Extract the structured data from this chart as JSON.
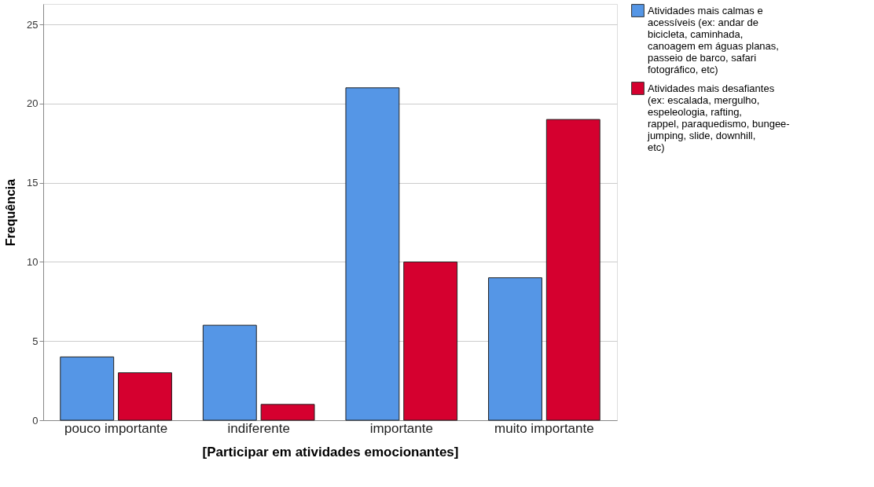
{
  "chart_data": {
    "type": "bar",
    "xlabel": "[Participar em atividades emocionantes]",
    "ylabel": "Frequência",
    "categories": [
      "pouco importante",
      "indiferente",
      "importante",
      "muito importante"
    ],
    "series": [
      {
        "name": "Atividades mais calmas e acessíveis (ex: andar de bicicleta, caminhada, canoagem em águas planas, passeio de barco, safari fotográfico, etc)",
        "color": "#5596e6",
        "values": [
          4,
          6,
          21,
          9
        ]
      },
      {
        "name": "Atividades mais desafiantes (ex: escalada, mergulho, espeleologia, rafting, rappel, paraquedismo, bungee-jumping, slide, downhill, etc)",
        "color": "#d5002f",
        "values": [
          3,
          1,
          10,
          19
        ]
      }
    ],
    "ylim": [
      0,
      26.3
    ],
    "yticks": [
      0,
      5,
      10,
      15,
      20,
      25
    ],
    "grid": "y",
    "legend": "top right"
  }
}
